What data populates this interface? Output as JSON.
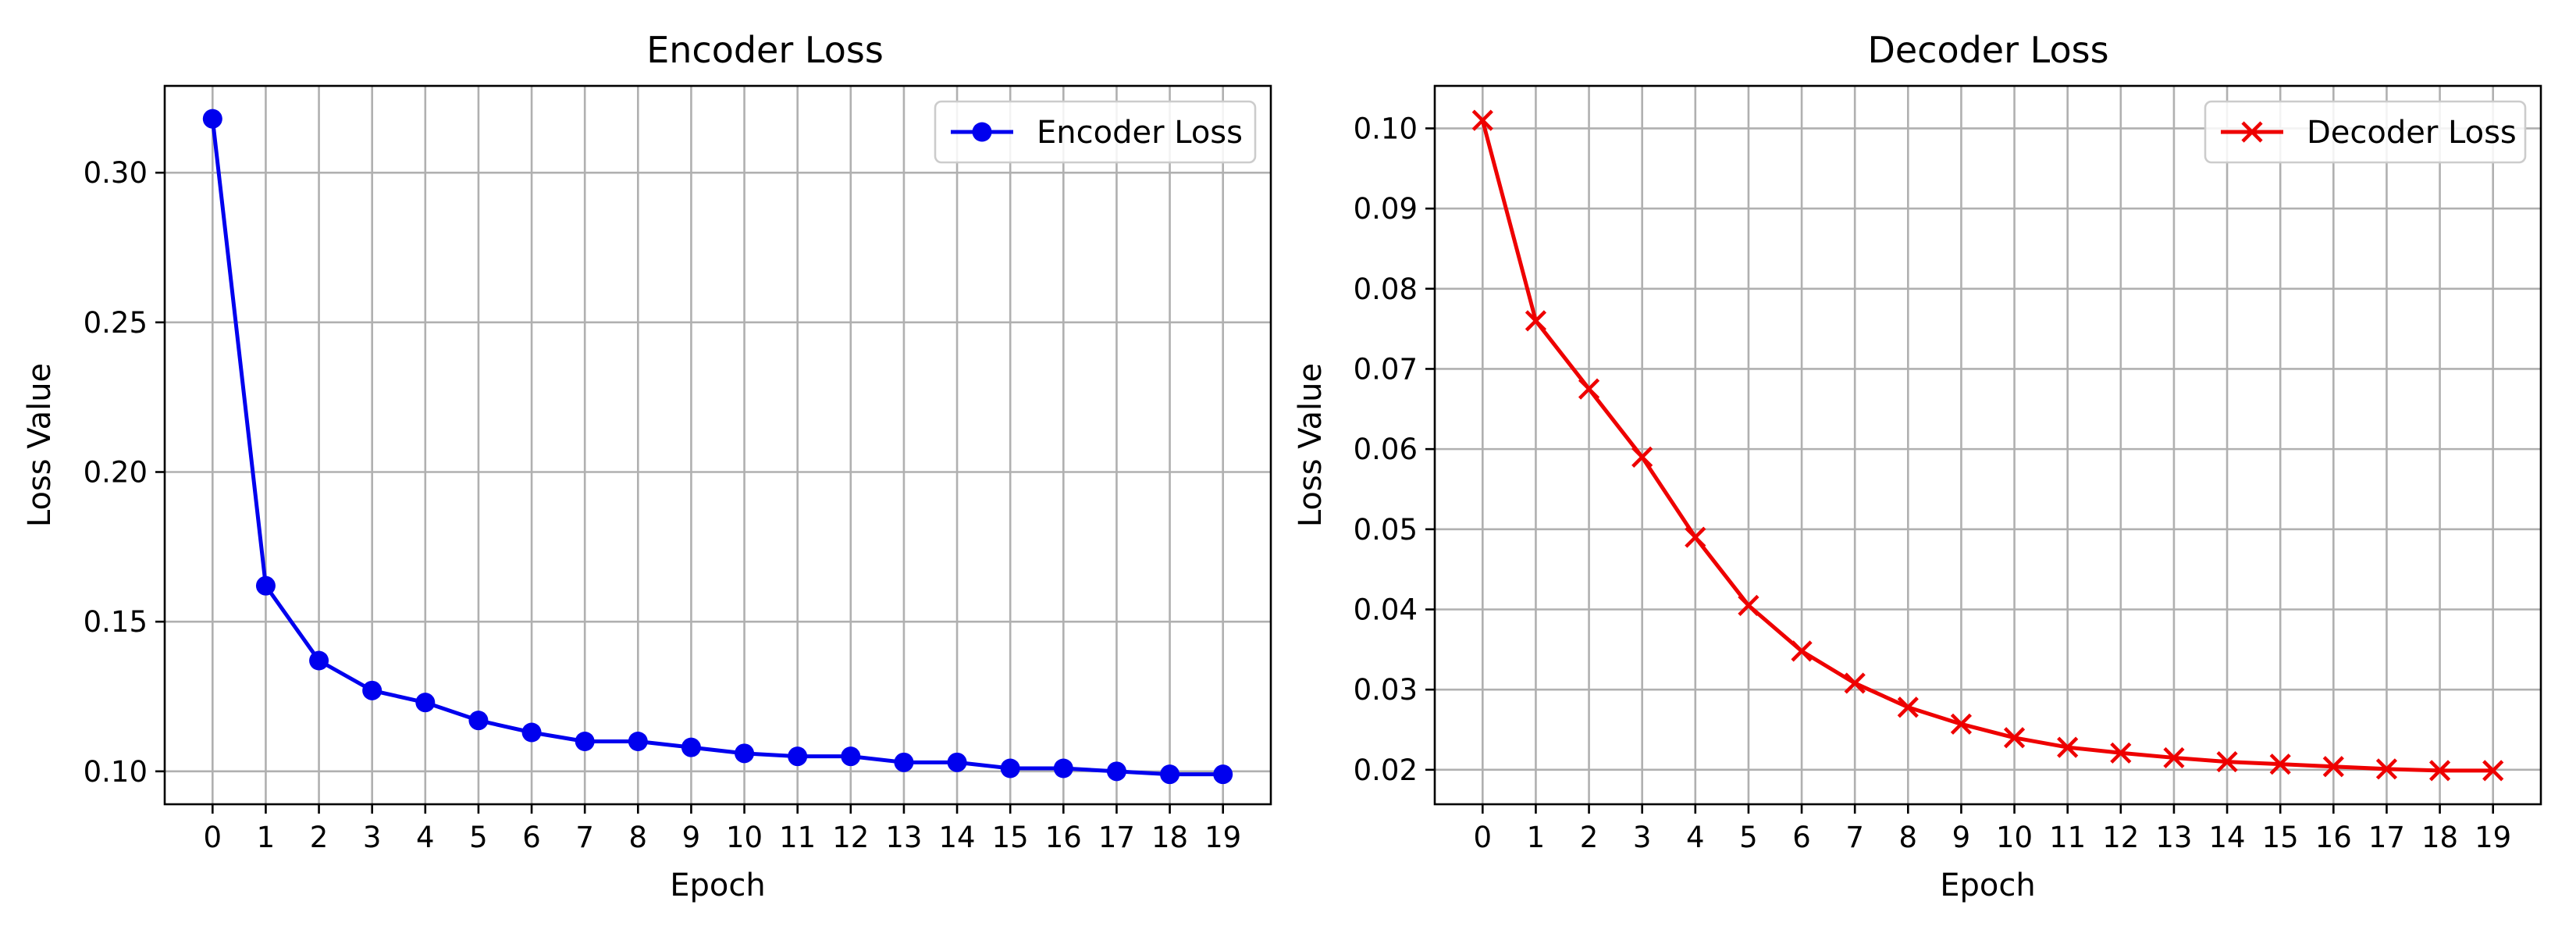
{
  "chart_data": [
    {
      "type": "line",
      "title": "Encoder Loss",
      "xlabel": "Epoch",
      "ylabel": "Loss Value",
      "x": [
        0,
        1,
        2,
        3,
        4,
        5,
        6,
        7,
        8,
        9,
        10,
        11,
        12,
        13,
        14,
        15,
        16,
        17,
        18,
        19
      ],
      "xlim": [
        -0.9,
        19.9
      ],
      "ylim": [
        0.089,
        0.329
      ],
      "yticks": [
        0.1,
        0.15,
        0.2,
        0.25,
        0.3
      ],
      "ytick_labels": [
        "0.10",
        "0.15",
        "0.20",
        "0.25",
        "0.30"
      ],
      "grid": true,
      "legend_position": "top-right",
      "series": [
        {
          "name": "Encoder Loss",
          "color": "#0000ee",
          "marker": "circle",
          "values": [
            0.318,
            0.162,
            0.137,
            0.127,
            0.123,
            0.117,
            0.113,
            0.11,
            0.11,
            0.108,
            0.106,
            0.105,
            0.105,
            0.103,
            0.103,
            0.101,
            0.101,
            0.1,
            0.099,
            0.099
          ]
        }
      ]
    },
    {
      "type": "line",
      "title": "Decoder Loss",
      "xlabel": "Epoch",
      "ylabel": "Loss Value",
      "x": [
        0,
        1,
        2,
        3,
        4,
        5,
        6,
        7,
        8,
        9,
        10,
        11,
        12,
        13,
        14,
        15,
        16,
        17,
        18,
        19
      ],
      "xlim": [
        -0.9,
        19.9
      ],
      "ylim": [
        0.0157,
        0.1053
      ],
      "yticks": [
        0.02,
        0.03,
        0.04,
        0.05,
        0.06,
        0.07,
        0.08,
        0.09,
        0.1
      ],
      "ytick_labels": [
        "0.02",
        "0.03",
        "0.04",
        "0.05",
        "0.06",
        "0.07",
        "0.08",
        "0.09",
        "0.10"
      ],
      "grid": true,
      "legend_position": "top-right",
      "series": [
        {
          "name": "Decoder Loss",
          "color": "#ee0000",
          "marker": "x",
          "values": [
            0.101,
            0.076,
            0.0675,
            0.059,
            0.049,
            0.0405,
            0.0348,
            0.0308,
            0.0278,
            0.0257,
            0.024,
            0.0228,
            0.0221,
            0.0215,
            0.021,
            0.0207,
            0.0204,
            0.0201,
            0.0199,
            0.0199
          ]
        }
      ]
    }
  ]
}
